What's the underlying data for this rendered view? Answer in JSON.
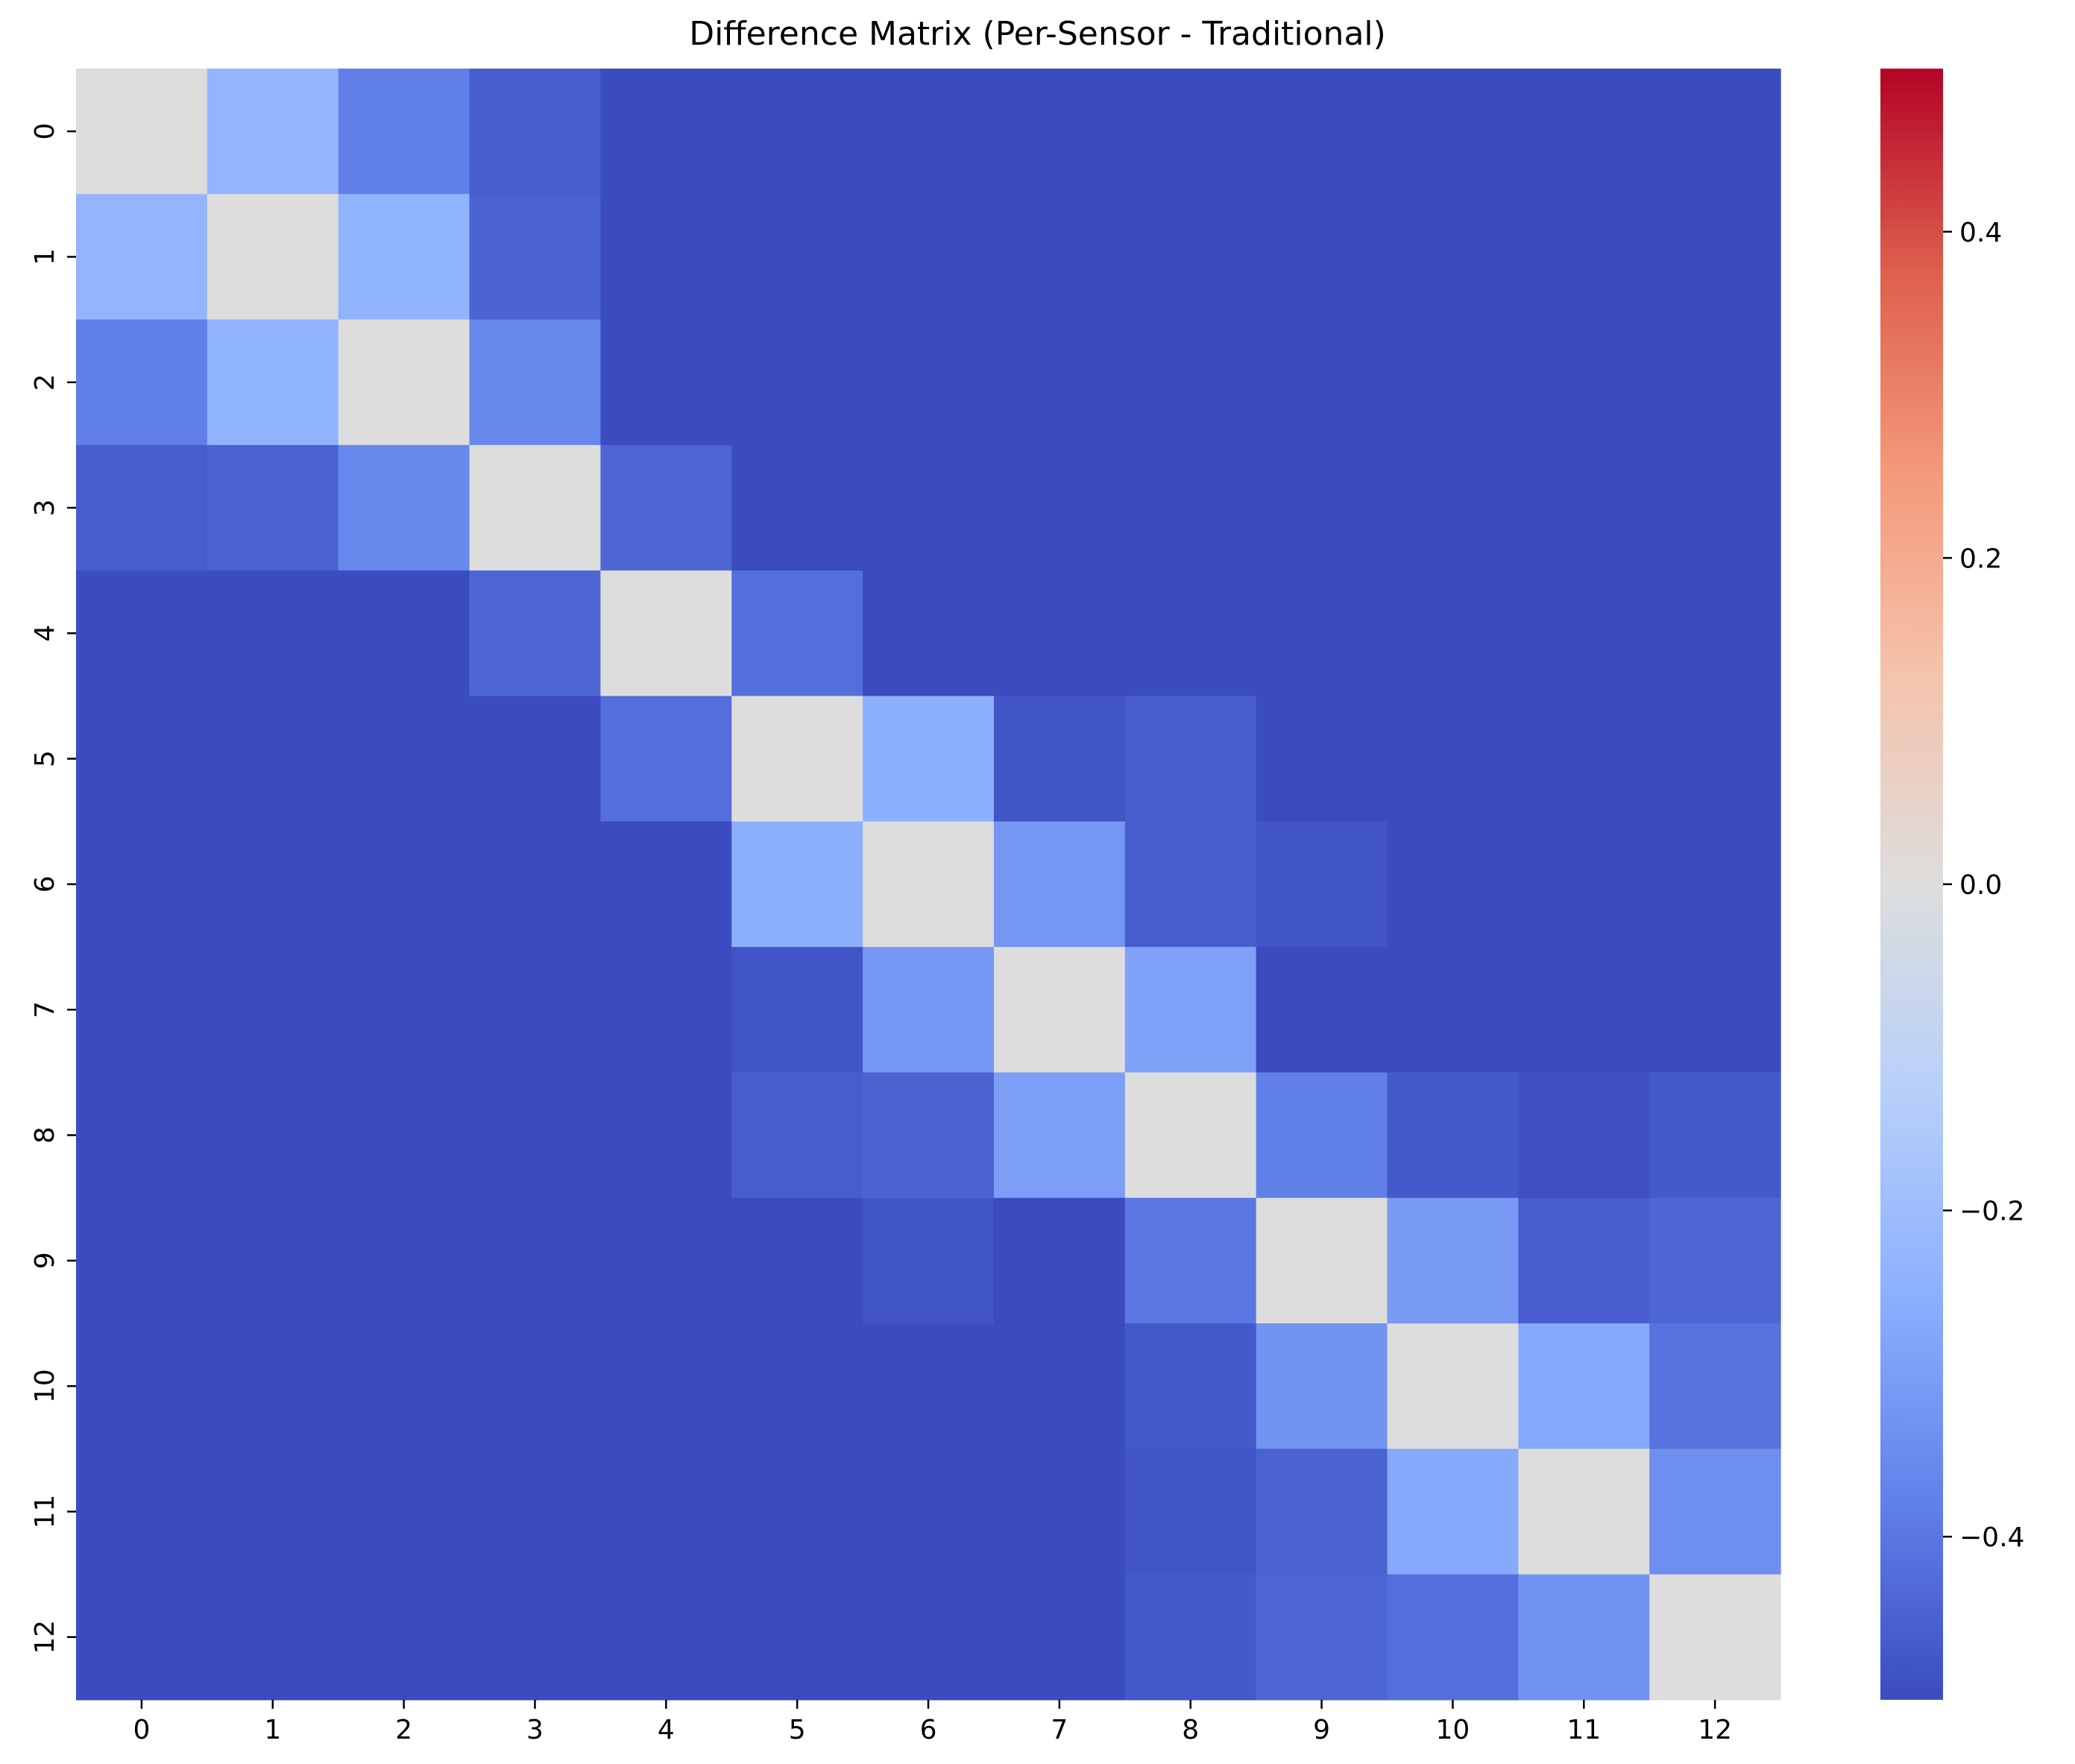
{
  "chart_data": {
    "type": "heatmap",
    "title": "Difference Matrix (Per-Sensor - Traditional)",
    "xlabel": "",
    "ylabel": "",
    "x_categories": [
      "0",
      "1",
      "2",
      "3",
      "4",
      "5",
      "6",
      "7",
      "8",
      "9",
      "10",
      "11",
      "12"
    ],
    "y_categories": [
      "0",
      "1",
      "2",
      "3",
      "4",
      "5",
      "6",
      "7",
      "8",
      "9",
      "10",
      "11",
      "12"
    ],
    "colormap": "coolwarm",
    "vmin": -0.5,
    "vmax": 0.5,
    "colorbar_ticks": [
      0.4,
      0.2,
      0.0,
      -0.2,
      -0.4
    ],
    "colorbar_tick_labels": [
      "0.4",
      "0.2",
      "0.0",
      "−0.2",
      "−0.4"
    ],
    "values": [
      [
        0.0,
        -0.23,
        -0.38,
        -0.46,
        -0.5,
        -0.5,
        -0.5,
        -0.5,
        -0.5,
        -0.5,
        -0.5,
        -0.5,
        -0.5
      ],
      [
        -0.23,
        0.0,
        -0.24,
        -0.45,
        -0.5,
        -0.5,
        -0.5,
        -0.5,
        -0.5,
        -0.5,
        -0.5,
        -0.5,
        -0.5
      ],
      [
        -0.38,
        -0.24,
        0.0,
        -0.36,
        -0.5,
        -0.5,
        -0.5,
        -0.5,
        -0.5,
        -0.5,
        -0.5,
        -0.5,
        -0.5
      ],
      [
        -0.46,
        -0.45,
        -0.36,
        0.0,
        -0.44,
        -0.5,
        -0.5,
        -0.5,
        -0.5,
        -0.5,
        -0.5,
        -0.5,
        -0.5
      ],
      [
        -0.5,
        -0.5,
        -0.5,
        -0.44,
        0.0,
        -0.42,
        -0.5,
        -0.5,
        -0.5,
        -0.5,
        -0.5,
        -0.5,
        -0.5
      ],
      [
        -0.5,
        -0.5,
        -0.5,
        -0.5,
        -0.42,
        0.0,
        -0.25,
        -0.48,
        -0.46,
        -0.5,
        -0.5,
        -0.5,
        -0.5
      ],
      [
        -0.5,
        -0.5,
        -0.5,
        -0.5,
        -0.5,
        -0.25,
        0.0,
        -0.32,
        -0.46,
        -0.48,
        -0.5,
        -0.5,
        -0.5
      ],
      [
        -0.5,
        -0.5,
        -0.5,
        -0.5,
        -0.5,
        -0.48,
        -0.32,
        0.0,
        -0.29,
        -0.5,
        -0.5,
        -0.5,
        -0.5
      ],
      [
        -0.5,
        -0.5,
        -0.5,
        -0.5,
        -0.5,
        -0.46,
        -0.45,
        -0.3,
        0.0,
        -0.38,
        -0.47,
        -0.49,
        -0.47
      ],
      [
        -0.5,
        -0.5,
        -0.5,
        -0.5,
        -0.5,
        -0.5,
        -0.48,
        -0.5,
        -0.4,
        0.0,
        -0.31,
        -0.46,
        -0.44
      ],
      [
        -0.5,
        -0.5,
        -0.5,
        -0.5,
        -0.5,
        -0.5,
        -0.5,
        -0.5,
        -0.47,
        -0.33,
        0.0,
        -0.27,
        -0.41
      ],
      [
        -0.5,
        -0.5,
        -0.5,
        -0.5,
        -0.5,
        -0.5,
        -0.5,
        -0.5,
        -0.48,
        -0.45,
        -0.27,
        0.0,
        -0.34
      ],
      [
        -0.5,
        -0.5,
        -0.5,
        -0.5,
        -0.5,
        -0.5,
        -0.5,
        -0.5,
        -0.47,
        -0.44,
        -0.42,
        -0.33,
        0.0
      ]
    ]
  }
}
